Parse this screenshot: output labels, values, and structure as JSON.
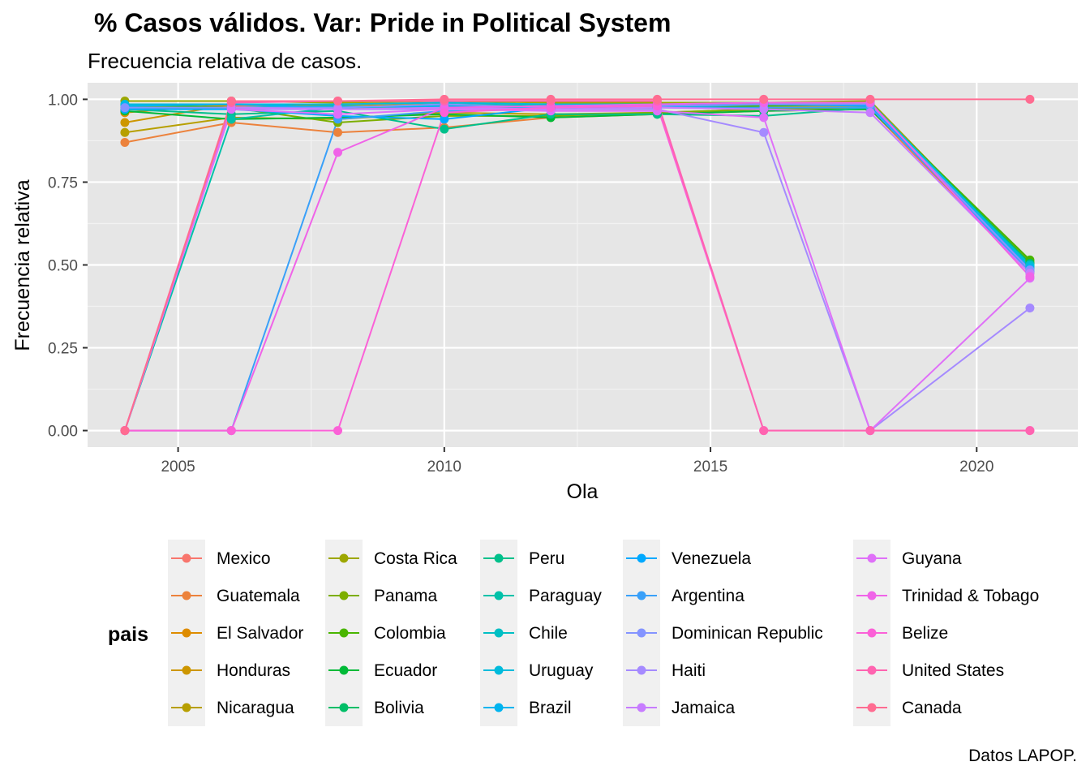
{
  "colors": {
    "panel": "#E6E6E6",
    "grid_major": "#FFFFFF",
    "grid_minor": "#F2F2F2",
    "legend_key_bg": "#F0F0F0"
  },
  "chart_data": {
    "type": "line",
    "title": "% Casos válidos. Var: Pride in Political System",
    "subtitle": "Frecuencia relativa de casos.",
    "xlabel": "Ola",
    "ylabel": "Frecuencia relativa",
    "caption": "Datos LAPOP.",
    "legend_title": "pais",
    "legend_position": "bottom",
    "grid": true,
    "xlim": [
      2003.3,
      2021.9
    ],
    "ylim": [
      -0.05,
      1.05
    ],
    "x_ticks": [
      2005,
      2010,
      2015,
      2020
    ],
    "x_tick_labels": [
      "2005",
      "2010",
      "2015",
      "2020"
    ],
    "y_ticks": [
      0,
      0.25,
      0.5,
      0.75,
      1
    ],
    "y_tick_labels": [
      "0.00",
      "0.25",
      "0.50",
      "0.75",
      "1.00"
    ],
    "x": [
      2004,
      2006,
      2008,
      2010,
      2012,
      2014,
      2016,
      2018,
      2021
    ],
    "series": [
      {
        "name": "Mexico",
        "color": "#F8766D",
        "values": [
          0.975,
          0.98,
          0.985,
          0.99,
          0.985,
          0.99,
          0.99,
          0.99,
          0.49
        ]
      },
      {
        "name": "Guatemala",
        "color": "#EC823C",
        "values": [
          0.87,
          0.93,
          0.9,
          0.915,
          0.945,
          0.955,
          0.965,
          0.97,
          0.475
        ]
      },
      {
        "name": "El Salvador",
        "color": "#DE8C00",
        "values": [
          0.96,
          0.985,
          0.98,
          0.985,
          0.975,
          0.98,
          0.985,
          0.985,
          0.505
        ]
      },
      {
        "name": "Honduras",
        "color": "#CD9600",
        "values": [
          0.93,
          0.985,
          0.975,
          0.98,
          0.97,
          0.975,
          0.98,
          0.98,
          0.5
        ]
      },
      {
        "name": "Nicaragua",
        "color": "#B79F00",
        "values": [
          0.9,
          0.945,
          0.94,
          0.96,
          0.955,
          0.96,
          0.97,
          0.975,
          0.5
        ]
      },
      {
        "name": "Costa Rica",
        "color": "#9DA700",
        "values": [
          0.995,
          0.995,
          0.99,
          0.995,
          0.99,
          0.99,
          0.99,
          0.995,
          0.5
        ]
      },
      {
        "name": "Panama",
        "color": "#7CAE00",
        "values": [
          0.98,
          0.975,
          0.93,
          0.95,
          0.95,
          0.96,
          0.97,
          0.975,
          0.51
        ]
      },
      {
        "name": "Colombia",
        "color": "#49B500",
        "values": [
          0.985,
          0.975,
          0.97,
          0.975,
          0.97,
          0.975,
          0.98,
          0.985,
          0.515
        ]
      },
      {
        "name": "Ecuador",
        "color": "#00BA38",
        "values": [
          0.965,
          0.94,
          0.945,
          0.955,
          0.945,
          0.955,
          0.965,
          0.97,
          0.505
        ]
      },
      {
        "name": "Bolivia",
        "color": "#00BE67",
        "values": [
          0.975,
          0.97,
          0.975,
          0.985,
          0.975,
          0.98,
          0.985,
          0.985,
          0.505
        ]
      },
      {
        "name": "Peru",
        "color": "#00C08B",
        "values": [
          0.97,
          0.955,
          0.965,
          0.91,
          0.955,
          0.955,
          0.95,
          0.975,
          0.5
        ]
      },
      {
        "name": "Paraguay",
        "color": "#00C1A9",
        "values": [
          0.0,
          0.94,
          0.975,
          0.985,
          0.98,
          0.985,
          0.985,
          0.985,
          0.495
        ]
      },
      {
        "name": "Chile",
        "color": "#00BFC4",
        "values": [
          0.975,
          0.975,
          0.98,
          0.975,
          0.97,
          0.975,
          0.985,
          0.985,
          0.5
        ]
      },
      {
        "name": "Uruguay",
        "color": "#00BBDC",
        "values": [
          0.985,
          0.985,
          0.985,
          0.99,
          0.985,
          0.985,
          0.99,
          0.99,
          0.495
        ]
      },
      {
        "name": "Brazil",
        "color": "#00B4EF",
        "values": [
          0.98,
          0.985,
          0.975,
          0.98,
          0.975,
          0.98,
          0.985,
          0.985,
          0.49
        ]
      },
      {
        "name": "Venezuela",
        "color": "#00A9FF",
        "values": [
          0.97,
          0.97,
          0.95,
          0.94,
          0.975,
          0.98,
          0.985,
          0.98,
          0.485
        ]
      },
      {
        "name": "Argentina",
        "color": "#39A0F9",
        "values": [
          0.0,
          0.0,
          0.94,
          0.965,
          0.97,
          0.975,
          0.975,
          0.975,
          0.48
        ]
      },
      {
        "name": "Dominican Republic",
        "color": "#8494FF",
        "values": [
          0.975,
          0.975,
          0.975,
          0.985,
          0.975,
          0.98,
          0.985,
          0.985,
          0.485
        ]
      },
      {
        "name": "Haiti",
        "color": "#A58AFF",
        "values": [
          0.0,
          0.97,
          0.97,
          0.97,
          0.97,
          0.97,
          0.9,
          0.0,
          0.37
        ]
      },
      {
        "name": "Jamaica",
        "color": "#C77CFF",
        "values": [
          0.0,
          0.975,
          0.97,
          0.975,
          0.97,
          0.975,
          0.97,
          0.96,
          0.475
        ]
      },
      {
        "name": "Guyana",
        "color": "#DF70F8",
        "values": [
          0.0,
          0.97,
          0.955,
          0.97,
          0.965,
          0.965,
          0.945,
          0.0,
          0.46
        ]
      },
      {
        "name": "Trinidad & Tobago",
        "color": "#F063E8",
        "values": [
          0.0,
          0.0,
          0.84,
          0.975,
          0.98,
          0.985,
          0.99,
          0.99,
          0.465
        ]
      },
      {
        "name": "Belize",
        "color": "#FB61D7",
        "values": [
          0.0,
          0.0,
          0.0,
          0.96,
          0.975,
          0.98,
          0.0,
          0.0,
          0.0
        ]
      },
      {
        "name": "United States",
        "color": "#FF64B0",
        "values": [
          0.0,
          0.99,
          0.995,
          0.995,
          0.995,
          0.995,
          0.0,
          0.0,
          0.0
        ]
      },
      {
        "name": "Canada",
        "color": "#FF6C91",
        "values": [
          0.0,
          0.995,
          0.995,
          1.0,
          1.0,
          1.0,
          1.0,
          1.0,
          1.0
        ]
      }
    ]
  }
}
